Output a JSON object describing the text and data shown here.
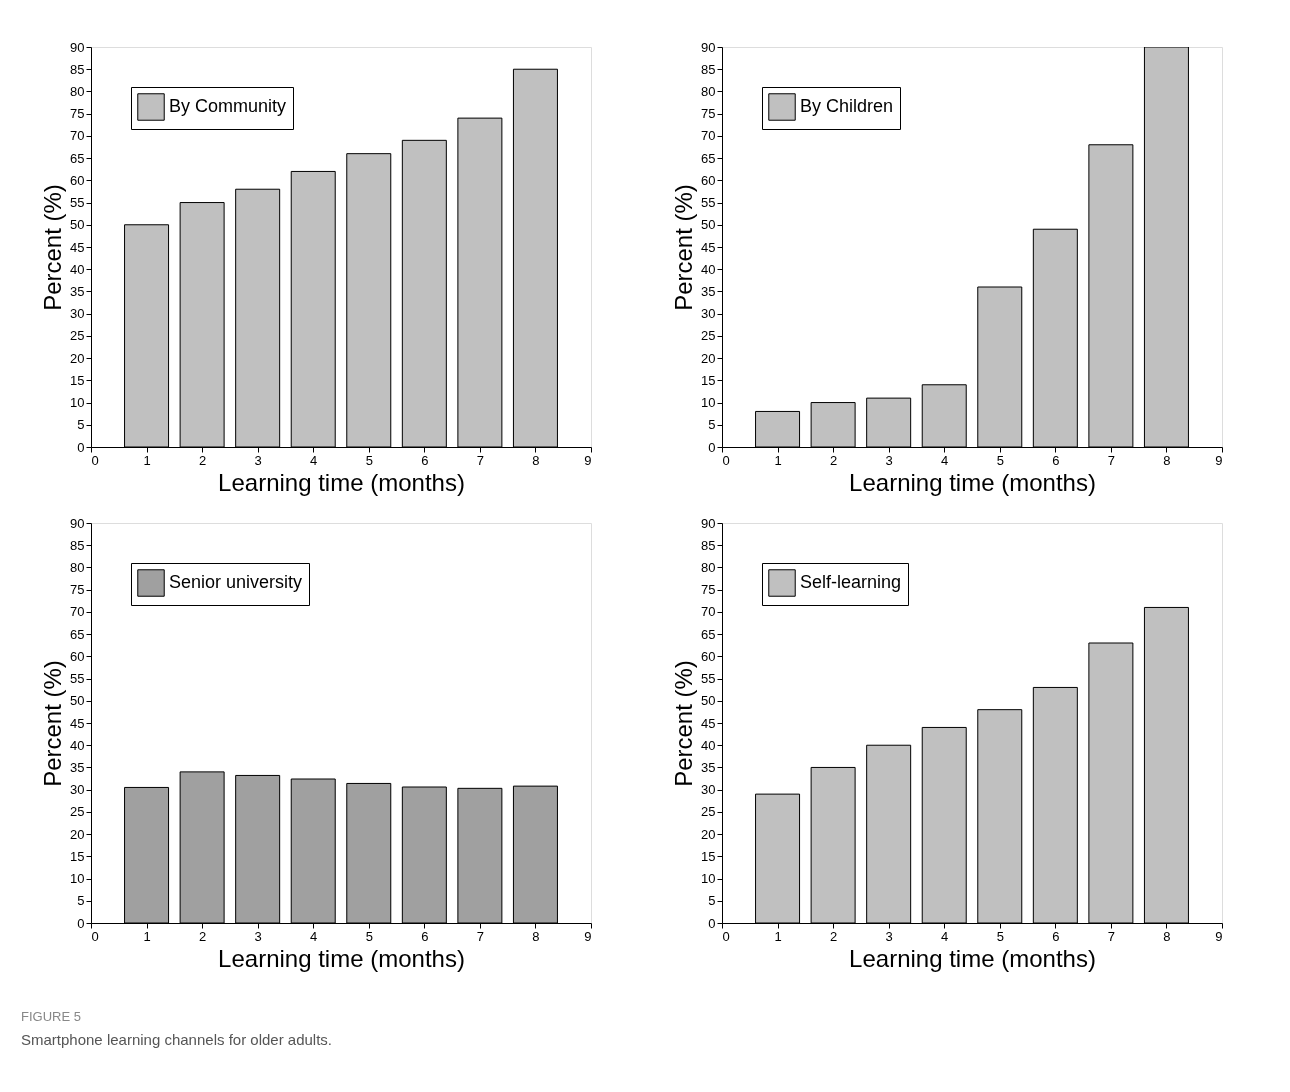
{
  "chart_data": [
    {
      "type": "bar",
      "xlabel": "Learning time (months)",
      "ylabel": "Percent (%)",
      "x": [
        1,
        2,
        3,
        4,
        5,
        6,
        7,
        8
      ],
      "xlim": [
        0,
        9
      ],
      "xticks": [
        0,
        1,
        2,
        3,
        4,
        5,
        6,
        7,
        8,
        9
      ],
      "ylim": [
        0,
        90
      ],
      "yticks": [
        0,
        5,
        10,
        15,
        20,
        25,
        30,
        35,
        40,
        45,
        50,
        55,
        60,
        65,
        70,
        75,
        80,
        85,
        90
      ],
      "grid": false,
      "legend": "top left",
      "series": [
        {
          "name": "By Community",
          "color": "#c0c0c0",
          "values": [
            50,
            55,
            58,
            62,
            66,
            69,
            74,
            85
          ]
        }
      ]
    },
    {
      "type": "bar",
      "xlabel": "Learning time (months)",
      "ylabel": "Percent (%)",
      "x": [
        1,
        2,
        3,
        4,
        5,
        6,
        7,
        8
      ],
      "xlim": [
        0,
        9
      ],
      "xticks": [
        0,
        1,
        2,
        3,
        4,
        5,
        6,
        7,
        8,
        9
      ],
      "ylim": [
        0,
        90
      ],
      "yticks": [
        0,
        5,
        10,
        15,
        20,
        25,
        30,
        35,
        40,
        45,
        50,
        55,
        60,
        65,
        70,
        75,
        80,
        85,
        90
      ],
      "grid": false,
      "legend": "top left",
      "series": [
        {
          "name": "By Children",
          "color": "#c0c0c0",
          "values": [
            8,
            10,
            11,
            14,
            36,
            49,
            68,
            90
          ]
        }
      ]
    },
    {
      "type": "bar",
      "xlabel": "Learning time (months)",
      "ylabel": "Percent (%)",
      "x": [
        1,
        2,
        3,
        4,
        5,
        6,
        7,
        8
      ],
      "xlim": [
        0,
        9
      ],
      "xticks": [
        0,
        1,
        2,
        3,
        4,
        5,
        6,
        7,
        8,
        9
      ],
      "ylim": [
        0,
        90
      ],
      "yticks": [
        0,
        5,
        10,
        15,
        20,
        25,
        30,
        35,
        40,
        45,
        50,
        55,
        60,
        65,
        70,
        75,
        80,
        85,
        90
      ],
      "grid": false,
      "legend": "top left",
      "series": [
        {
          "name": "Senior university",
          "color": "#a0a0a0",
          "values": [
            30.5,
            34,
            33.2,
            32.4,
            31.4,
            30.6,
            30.3,
            30.8
          ]
        }
      ],
      "annotations": [
        "FIGURE 5",
        "Smartphone learning channels for older adults."
      ]
    },
    {
      "type": "bar",
      "xlabel": "Learning time (months)",
      "ylabel": "Percent (%)",
      "x": [
        1,
        2,
        3,
        4,
        5,
        6,
        7,
        8
      ],
      "xlim": [
        0,
        9
      ],
      "xticks": [
        0,
        1,
        2,
        3,
        4,
        5,
        6,
        7,
        8,
        9
      ],
      "ylim": [
        0,
        90
      ],
      "yticks": [
        0,
        5,
        10,
        15,
        20,
        25,
        30,
        35,
        40,
        45,
        50,
        55,
        60,
        65,
        70,
        75,
        80,
        85,
        90
      ],
      "grid": false,
      "legend": "top left",
      "series": [
        {
          "name": "Self-learning",
          "color": "#c0c0c0",
          "values": [
            29,
            35,
            40,
            44,
            48,
            53,
            63,
            71
          ]
        }
      ]
    }
  ]
}
